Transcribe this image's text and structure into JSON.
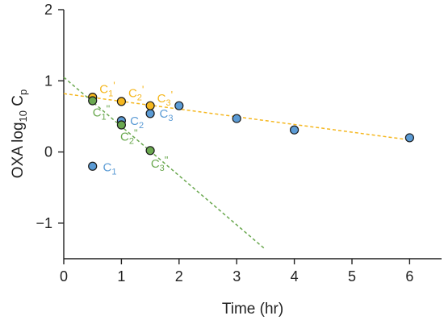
{
  "chart_data": {
    "type": "scatter",
    "xlabel": "Time (hr)",
    "ylabel": {
      "prefix": "OXA  log",
      "sub1": "10",
      "mid": " C",
      "sub2": "p"
    },
    "xlim": [
      0,
      6.5
    ],
    "ylim": [
      -1.5,
      2
    ],
    "xticks": [
      0,
      1,
      2,
      3,
      4,
      5,
      6
    ],
    "yticks": [
      -1,
      0,
      1,
      2
    ],
    "grid": false,
    "series": [
      {
        "color": "#5b9bd5",
        "points": [
          {
            "x": 0.5,
            "y": -0.2
          },
          {
            "x": 1.0,
            "y": 0.44
          },
          {
            "x": 1.5,
            "y": 0.54
          },
          {
            "x": 2.0,
            "y": 0.65
          },
          {
            "x": 3.0,
            "y": 0.47
          },
          {
            "x": 4.0,
            "y": 0.31
          },
          {
            "x": 6.0,
            "y": 0.2
          }
        ]
      },
      {
        "color": "#f5b71f",
        "points": [
          {
            "x": 0.5,
            "y": 0.77
          },
          {
            "x": 1.0,
            "y": 0.71
          },
          {
            "x": 1.5,
            "y": 0.65
          }
        ]
      },
      {
        "color": "#6aa84f",
        "points": [
          {
            "x": 0.5,
            "y": 0.72
          },
          {
            "x": 1.0,
            "y": 0.38
          },
          {
            "x": 1.5,
            "y": 0.02
          }
        ]
      }
    ],
    "fit_lines": [
      {
        "color": "#f5b71f",
        "x0": 0.0,
        "y0": 0.82,
        "x1": 6.0,
        "y1": 0.17
      },
      {
        "color": "#6aa84f",
        "x0": 0.0,
        "y0": 1.05,
        "x1": 3.5,
        "y1": -1.37
      }
    ],
    "point_labels": [
      {
        "base": "C",
        "sub": "1",
        "sup": "",
        "color": "#5b9bd5",
        "x": 0.68,
        "y": -0.27
      },
      {
        "base": "C",
        "sub": "2",
        "sup": "",
        "color": "#5b9bd5",
        "x": 1.15,
        "y": 0.38
      },
      {
        "base": "C",
        "sub": "3",
        "sup": "",
        "color": "#5b9bd5",
        "x": 1.66,
        "y": 0.48
      },
      {
        "base": "C",
        "sub": "1",
        "sup": "'",
        "color": "#f5b71f",
        "x": 0.62,
        "y": 0.83
      },
      {
        "base": "C",
        "sub": "2",
        "sup": "'",
        "color": "#f5b71f",
        "x": 1.12,
        "y": 0.77
      },
      {
        "base": "C",
        "sub": "3",
        "sup": "'",
        "color": "#f5b71f",
        "x": 1.62,
        "y": 0.7
      },
      {
        "base": "C",
        "sub": "1",
        "sup": "\"",
        "color": "#6aa84f",
        "x": 0.5,
        "y": 0.5
      },
      {
        "base": "C",
        "sub": "2",
        "sup": "\"",
        "color": "#6aa84f",
        "x": 0.98,
        "y": 0.16
      },
      {
        "base": "C",
        "sub": "3",
        "sup": "\"",
        "color": "#6aa84f",
        "x": 1.51,
        "y": -0.22
      }
    ]
  }
}
